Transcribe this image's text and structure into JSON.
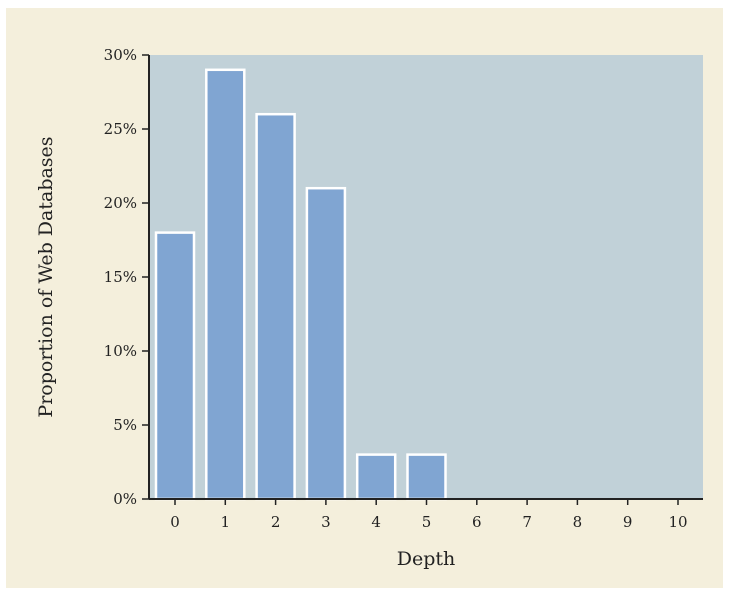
{
  "chart_data": {
    "type": "bar",
    "categories": [
      "0",
      "1",
      "2",
      "3",
      "4",
      "5",
      "6",
      "7",
      "8",
      "9",
      "10"
    ],
    "values": [
      18,
      29,
      26,
      21,
      3,
      3,
      0,
      0,
      0,
      0,
      0
    ],
    "value_unit": "%",
    "title": "",
    "xlabel": "Depth",
    "ylabel": "Proportion of Web Databases",
    "ylim": [
      0,
      30
    ],
    "yticks": [
      "0%",
      "5%",
      "10%",
      "15%",
      "20%",
      "25%",
      "30%"
    ],
    "grid": false,
    "legend": "none",
    "colors": {
      "background": "#f4efdc",
      "plot_area": "#c1d1d8",
      "bar_fill": "#80a5d2",
      "bar_edge": "#ffffff",
      "axis": "#222222"
    }
  }
}
